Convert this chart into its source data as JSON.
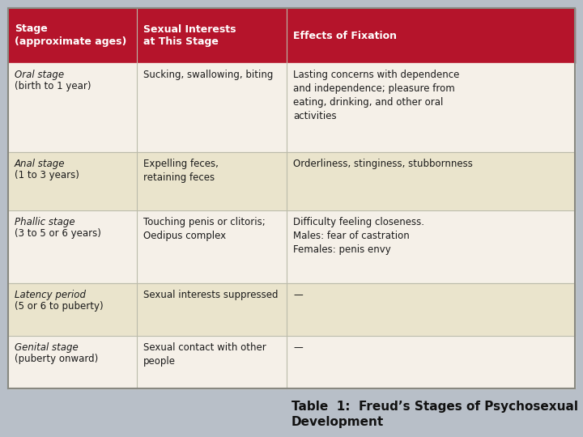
{
  "title": "Table  1:  Freud’s Stages of Psychosexual\nDevelopment",
  "header_bg": "#b5142b",
  "header_text_color": "#ffffff",
  "body_bg_light": "#f5f0e8",
  "body_bg_dark": "#eae4cc",
  "outer_bg": "#b8bfc8",
  "divider_color": "#bbbbaa",
  "border_color": "#888880",
  "col_headers": [
    "Stage\n(approximate ages)",
    "Sexual Interests\nat This Stage",
    "Effects of Fixation"
  ],
  "rows": [
    {
      "stage_italic": "Oral stage",
      "stage_normal": "(birth to 1 year)",
      "interests": "Sucking, swallowing, biting",
      "effects": "Lasting concerns with dependence\nand independence; pleasure from\neating, drinking, and other oral\nactivities",
      "bg": "#f5f0e8"
    },
    {
      "stage_italic": "Anal stage",
      "stage_normal": "(1 to 3 years)",
      "interests": "Expelling feces,\nretaining feces",
      "effects": "Orderliness, stinginess, stubbornness",
      "bg": "#eae4cc"
    },
    {
      "stage_italic": "Phallic stage",
      "stage_normal": "(3 to 5 or 6 years)",
      "interests": "Touching penis or clitoris;\nOedipus complex",
      "effects": "Difficulty feeling closeness.\nMales: fear of castration\nFemales: penis envy",
      "bg": "#f5f0e8"
    },
    {
      "stage_italic": "Latency period",
      "stage_normal": "(5 or 6 to puberty)",
      "interests": "Sexual interests suppressed",
      "effects": "—",
      "bg": "#eae4cc"
    },
    {
      "stage_italic": "Genital stage",
      "stage_normal": "(puberty onward)",
      "interests": "Sexual contact with other\npeople",
      "effects": "—",
      "bg": "#f5f0e8"
    }
  ]
}
